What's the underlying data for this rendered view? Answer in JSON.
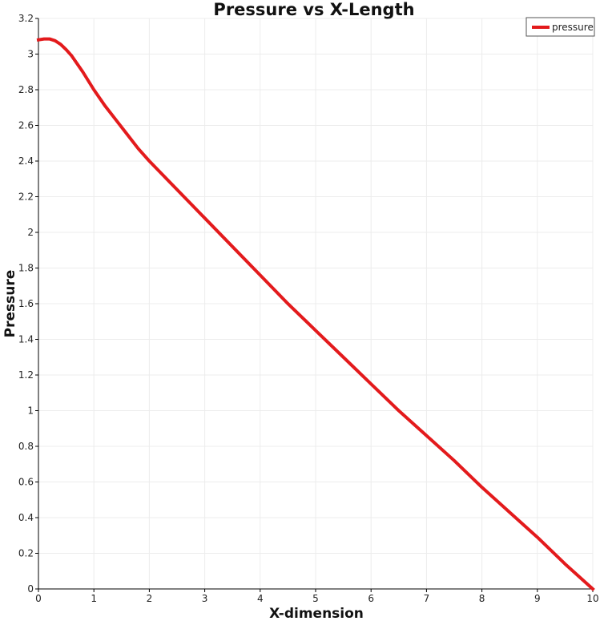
{
  "chart_data": {
    "type": "line",
    "title": "Pressure vs X-Length",
    "xlabel": "X-dimension",
    "ylabel": "Pressure",
    "xlim": [
      0,
      10
    ],
    "ylim": [
      0,
      3.2
    ],
    "x_ticks": [
      "0",
      "1",
      "2",
      "3",
      "4",
      "5",
      "6",
      "7",
      "8",
      "9",
      "10"
    ],
    "y_ticks": [
      "0",
      "0.2",
      "0.4",
      "0.6",
      "0.8",
      "1",
      "1.2",
      "1.4",
      "1.6",
      "1.8",
      "2",
      "2.2",
      "2.4",
      "2.6",
      "2.8",
      "3",
      "3.2"
    ],
    "grid": true,
    "legend_position": "top-right",
    "series": [
      {
        "name": "pressure",
        "color": "#e31a1c",
        "x": [
          0,
          0.1,
          0.2,
          0.3,
          0.4,
          0.5,
          0.6,
          0.7,
          0.8,
          0.9,
          1.0,
          1.2,
          1.4,
          1.6,
          1.8,
          2.0,
          2.5,
          3.0,
          3.5,
          4.0,
          4.5,
          5.0,
          5.5,
          6.0,
          6.5,
          7.0,
          7.5,
          8.0,
          8.5,
          9.0,
          9.5,
          10.0
        ],
        "y": [
          3.08,
          3.085,
          3.085,
          3.075,
          3.055,
          3.025,
          2.99,
          2.945,
          2.9,
          2.85,
          2.8,
          2.71,
          2.63,
          2.55,
          2.47,
          2.4,
          2.24,
          2.08,
          1.92,
          1.76,
          1.6,
          1.45,
          1.3,
          1.15,
          1.0,
          0.86,
          0.72,
          0.57,
          0.43,
          0.29,
          0.14,
          0.0
        ]
      }
    ]
  }
}
